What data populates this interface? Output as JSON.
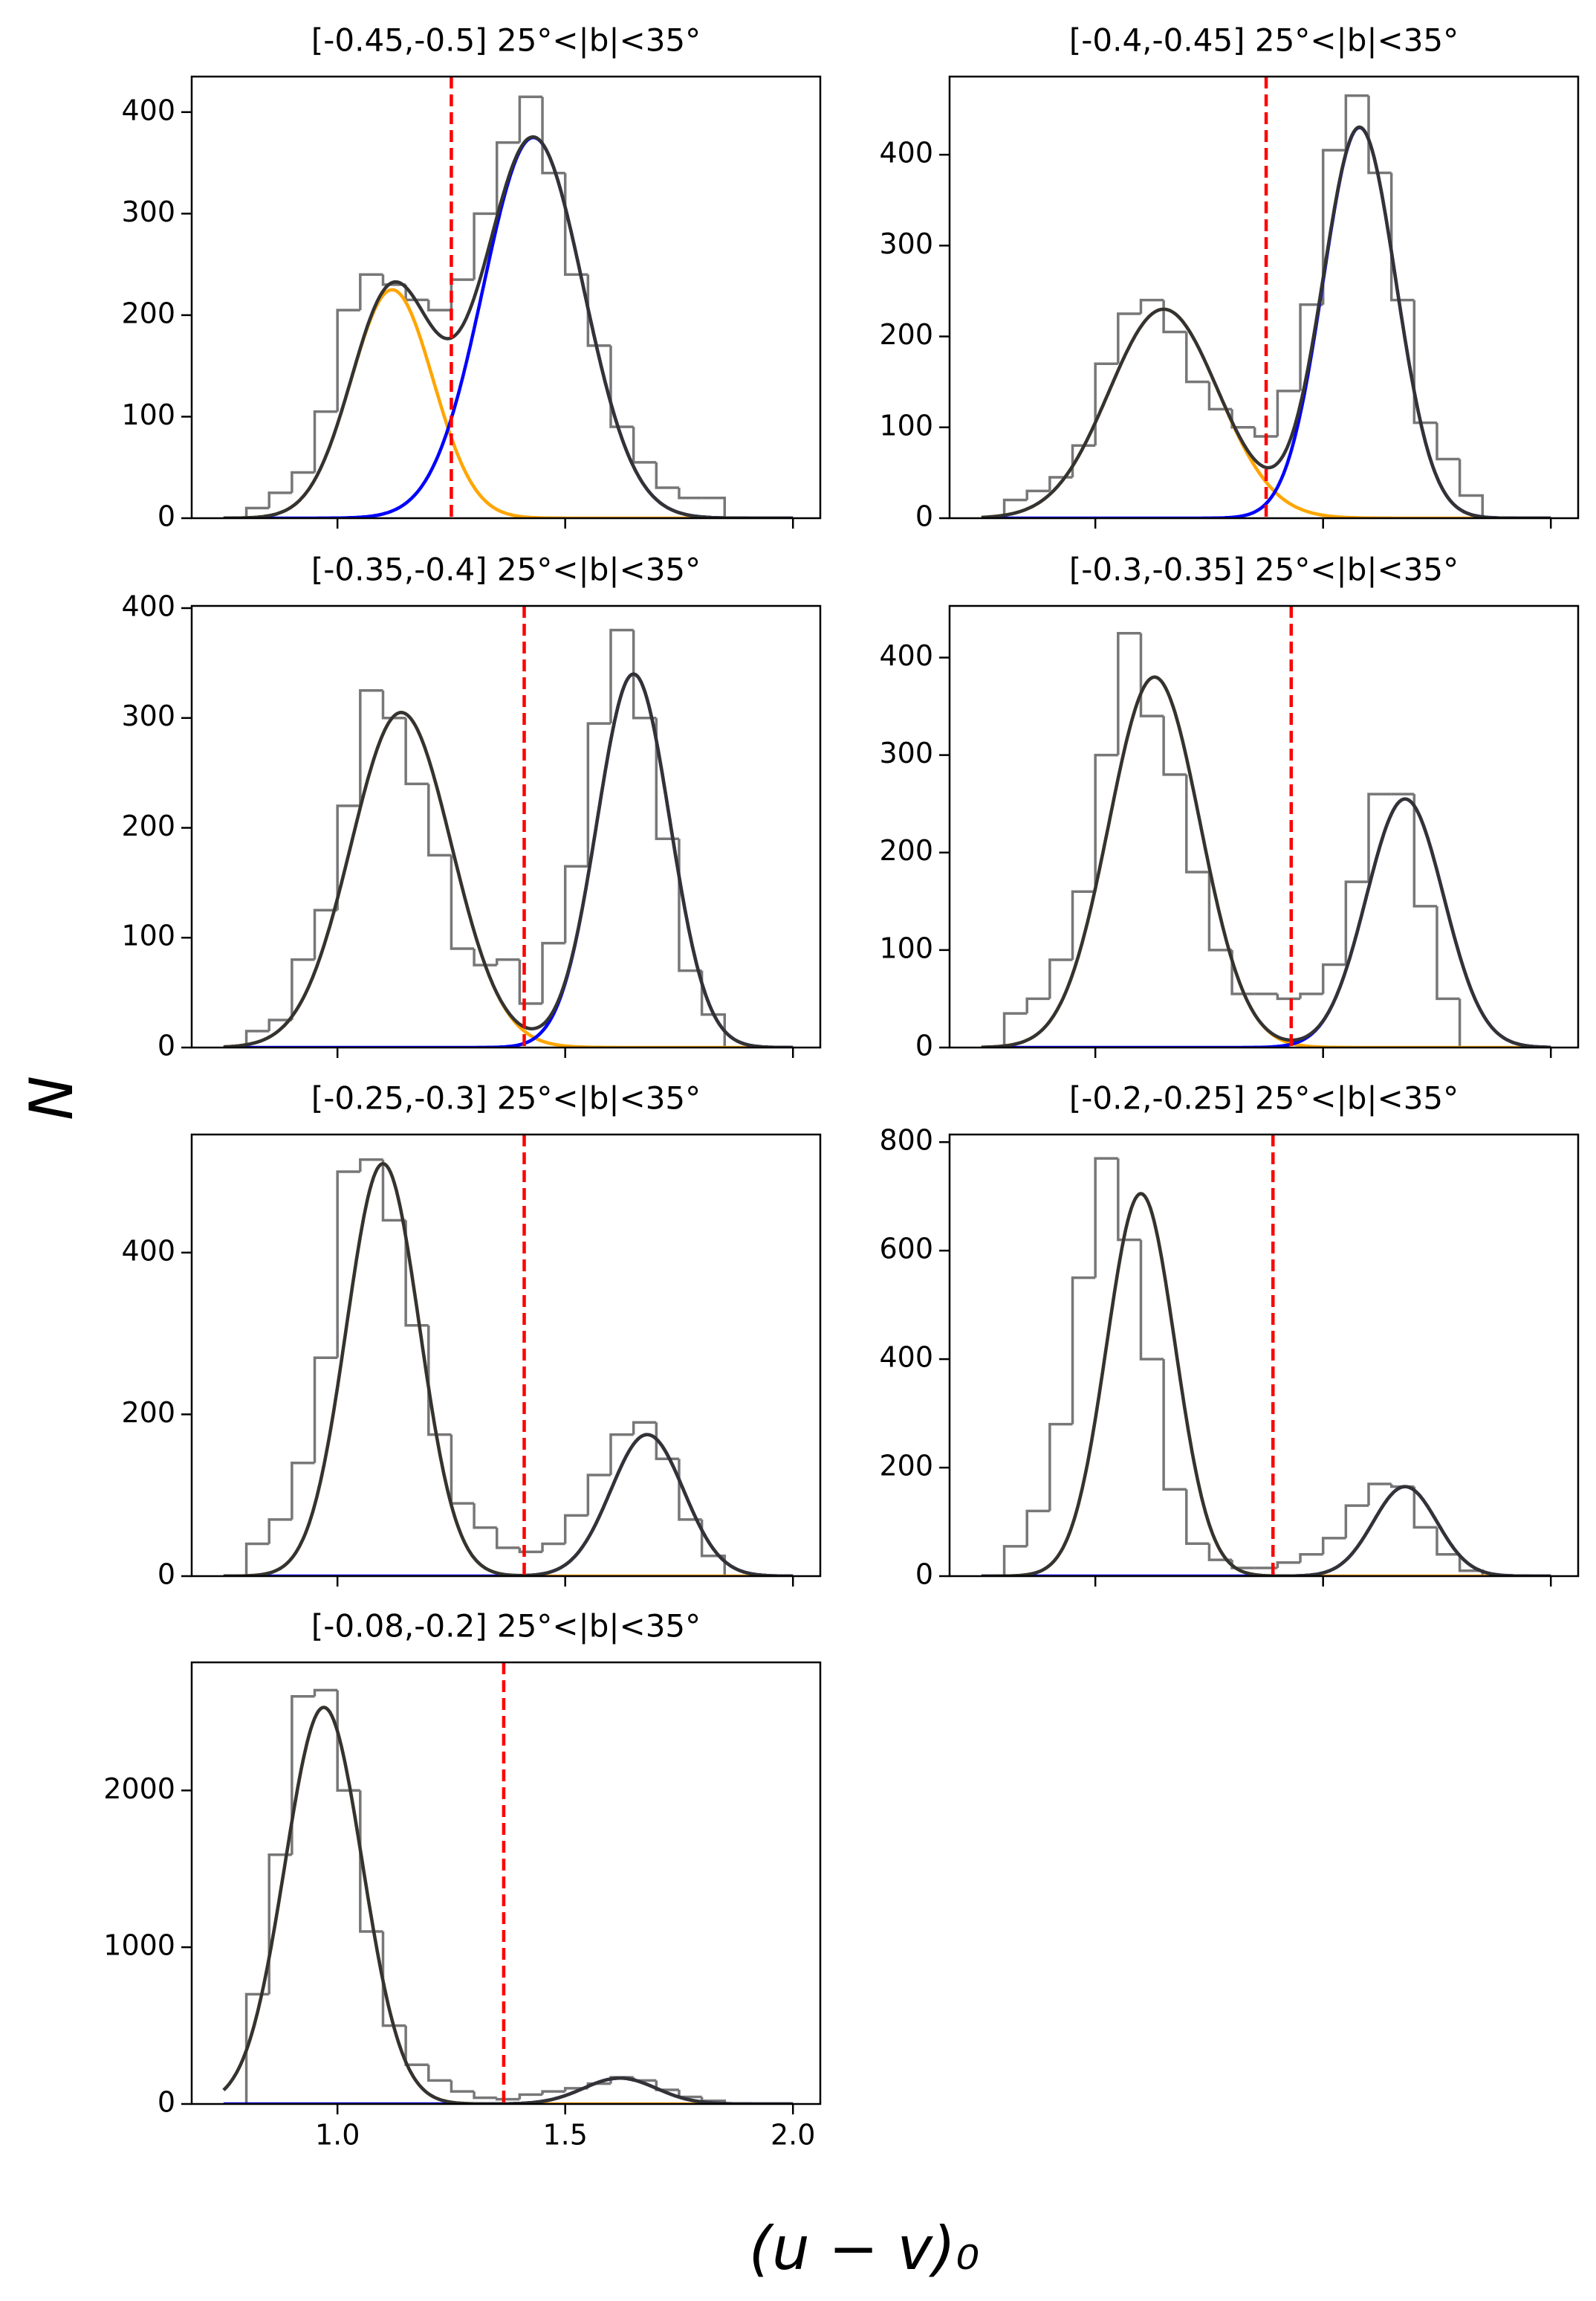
{
  "ylabel": "N",
  "xlabel": "(u − v)₀",
  "chart_data": [
    {
      "type": "histogram",
      "title": "[-0.45,-0.5] 25°<|b|<35°",
      "bins": [
        0.75,
        0.8,
        0.85,
        0.9,
        0.95,
        1.0,
        1.05,
        1.1,
        1.15,
        1.2,
        1.25,
        1.3,
        1.35,
        1.4,
        1.45,
        1.5,
        1.55,
        1.6,
        1.65,
        1.7,
        1.75,
        1.8,
        1.85
      ],
      "values": [
        0,
        10,
        25,
        45,
        105,
        205,
        240,
        230,
        215,
        205,
        235,
        300,
        370,
        415,
        340,
        240,
        170,
        90,
        55,
        30,
        20,
        20
      ],
      "color": "#777777",
      "components": [
        {
          "color": "orange",
          "amplitude": 225,
          "mean": 1.12,
          "sigma": 0.09
        },
        {
          "color": "blue",
          "amplitude": 375,
          "mean": 1.43,
          "sigma": 0.11
        }
      ],
      "total_color": "#333333",
      "threshold": 1.25,
      "threshold_color": "red",
      "xlim": [
        0.68,
        2.06
      ],
      "xticks": [
        1,
        1.5,
        2
      ],
      "ylim": [
        0,
        435
      ],
      "yticks": [
        0,
        100,
        200,
        300,
        400
      ]
    },
    {
      "type": "histogram",
      "title": "[-0.4,-0.45] 25°<|b|<35°",
      "bins": [
        0.75,
        0.8,
        0.85,
        0.9,
        0.95,
        1.0,
        1.05,
        1.1,
        1.15,
        1.2,
        1.25,
        1.3,
        1.35,
        1.4,
        1.45,
        1.5,
        1.55,
        1.6,
        1.65,
        1.7,
        1.75,
        1.8,
        1.85
      ],
      "values": [
        0,
        20,
        30,
        45,
        80,
        170,
        225,
        240,
        205,
        150,
        120,
        100,
        90,
        140,
        235,
        405,
        465,
        380,
        240,
        105,
        65,
        25
      ],
      "color": "#777777",
      "components": [
        {
          "color": "orange",
          "amplitude": 230,
          "mean": 1.15,
          "sigma": 0.12
        },
        {
          "color": "blue",
          "amplitude": 430,
          "mean": 1.58,
          "sigma": 0.08
        }
      ],
      "total_color": "#333333",
      "threshold": 1.375,
      "threshold_color": "red",
      "xlim": [
        0.68,
        2.06
      ],
      "xticks": [
        1,
        1.5,
        2
      ],
      "ylim": [
        0,
        486
      ],
      "yticks": [
        0,
        100,
        200,
        300,
        400
      ]
    },
    {
      "type": "histogram",
      "title": "[-0.35,-0.4] 25°<|b|<35°",
      "bins": [
        0.75,
        0.8,
        0.85,
        0.9,
        0.95,
        1.0,
        1.05,
        1.1,
        1.15,
        1.2,
        1.25,
        1.3,
        1.35,
        1.4,
        1.45,
        1.5,
        1.55,
        1.6,
        1.65,
        1.7,
        1.75,
        1.8,
        1.85
      ],
      "values": [
        0,
        15,
        25,
        80,
        125,
        220,
        325,
        300,
        240,
        175,
        90,
        75,
        80,
        40,
        95,
        165,
        295,
        380,
        300,
        190,
        70,
        30
      ],
      "color": "#777777",
      "components": [
        {
          "color": "orange",
          "amplitude": 305,
          "mean": 1.14,
          "sigma": 0.11
        },
        {
          "color": "blue",
          "amplitude": 340,
          "mean": 1.65,
          "sigma": 0.08
        }
      ],
      "total_color": "#333333",
      "threshold": 1.41,
      "threshold_color": "red",
      "xlim": [
        0.68,
        2.06
      ],
      "xticks": [
        1,
        1.5,
        2
      ],
      "ylim": [
        0,
        402
      ],
      "yticks": [
        0,
        100,
        200,
        300,
        400
      ]
    },
    {
      "type": "histogram",
      "title": "[-0.3,-0.35] 25°<|b|<35°",
      "bins": [
        0.75,
        0.8,
        0.85,
        0.9,
        0.95,
        1.0,
        1.05,
        1.1,
        1.15,
        1.2,
        1.25,
        1.3,
        1.35,
        1.4,
        1.45,
        1.5,
        1.55,
        1.6,
        1.65,
        1.7,
        1.75,
        1.8,
        1.85
      ],
      "values": [
        0,
        35,
        50,
        90,
        160,
        300,
        425,
        340,
        280,
        180,
        100,
        55,
        55,
        50,
        55,
        85,
        170,
        260,
        260,
        145,
        50,
        0
      ],
      "color": "#777777",
      "components": [
        {
          "color": "orange",
          "amplitude": 380,
          "mean": 1.13,
          "sigma": 0.1
        },
        {
          "color": "blue",
          "amplitude": 255,
          "mean": 1.68,
          "sigma": 0.085
        }
      ],
      "total_color": "#333333",
      "threshold": 1.43,
      "threshold_color": "red",
      "xlim": [
        0.68,
        2.06
      ],
      "xticks": [
        1,
        1.5,
        2
      ],
      "ylim": [
        0,
        453
      ],
      "yticks": [
        0,
        100,
        200,
        300,
        400
      ]
    },
    {
      "type": "histogram",
      "title": "[-0.25,-0.3] 25°<|b|<35°",
      "bins": [
        0.75,
        0.8,
        0.85,
        0.9,
        0.95,
        1.0,
        1.05,
        1.1,
        1.15,
        1.2,
        1.25,
        1.3,
        1.35,
        1.4,
        1.45,
        1.5,
        1.55,
        1.6,
        1.65,
        1.7,
        1.75,
        1.8,
        1.85
      ],
      "values": [
        0,
        40,
        70,
        140,
        270,
        500,
        515,
        440,
        310,
        175,
        90,
        60,
        35,
        30,
        40,
        75,
        125,
        175,
        190,
        145,
        70,
        25
      ],
      "color": "#777777",
      "components": [
        {
          "color": "orange",
          "amplitude": 510,
          "mean": 1.1,
          "sigma": 0.08
        },
        {
          "color": "blue",
          "amplitude": 175,
          "mean": 1.68,
          "sigma": 0.08
        }
      ],
      "total_color": "#333333",
      "threshold": 1.41,
      "threshold_color": "red",
      "xlim": [
        0.68,
        2.06
      ],
      "xticks": [
        1,
        1.5,
        2
      ],
      "ylim": [
        0,
        546
      ],
      "yticks": [
        0,
        200,
        400
      ]
    },
    {
      "type": "histogram",
      "title": "[-0.2,-0.25] 25°<|b|<35°",
      "bins": [
        0.75,
        0.8,
        0.85,
        0.9,
        0.95,
        1.0,
        1.05,
        1.1,
        1.15,
        1.2,
        1.25,
        1.3,
        1.35,
        1.4,
        1.45,
        1.5,
        1.55,
        1.6,
        1.65,
        1.7,
        1.75,
        1.8,
        1.85
      ],
      "values": [
        0,
        55,
        120,
        280,
        550,
        770,
        620,
        400,
        160,
        60,
        30,
        15,
        15,
        25,
        40,
        70,
        130,
        170,
        165,
        90,
        40,
        10
      ],
      "color": "#777777",
      "components": [
        {
          "color": "orange",
          "amplitude": 705,
          "mean": 1.1,
          "sigma": 0.075
        },
        {
          "color": "blue",
          "amplitude": 165,
          "mean": 1.68,
          "sigma": 0.07
        }
      ],
      "total_color": "#333333",
      "threshold": 1.39,
      "threshold_color": "red",
      "xlim": [
        0.68,
        2.06
      ],
      "xticks": [
        1,
        1.5,
        2
      ],
      "ylim": [
        0,
        814
      ],
      "yticks": [
        0,
        200,
        400,
        600,
        800
      ]
    },
    {
      "type": "histogram",
      "title": "[-0.08,-0.2] 25°<|b|<35°",
      "bins": [
        0.75,
        0.8,
        0.85,
        0.9,
        0.95,
        1.0,
        1.05,
        1.1,
        1.15,
        1.2,
        1.25,
        1.3,
        1.35,
        1.4,
        1.45,
        1.5,
        1.55,
        1.6,
        1.65,
        1.7,
        1.75,
        1.8,
        1.85
      ],
      "values": [
        0,
        700,
        1590,
        2600,
        2640,
        2000,
        1100,
        500,
        250,
        150,
        80,
        40,
        30,
        60,
        80,
        100,
        130,
        170,
        150,
        90,
        45,
        20
      ],
      "color": "#777777",
      "components": [
        {
          "color": "orange",
          "amplitude": 2530,
          "mean": 0.97,
          "sigma": 0.085
        },
        {
          "color": "blue",
          "amplitude": 165,
          "mean": 1.62,
          "sigma": 0.08
        }
      ],
      "total_color": "#333333",
      "threshold": 1.365,
      "threshold_color": "red",
      "xlim": [
        0.68,
        2.06
      ],
      "xticks": [
        {
          "value": 1,
          "label": "1.0"
        },
        {
          "value": 1.5,
          "label": "1.5"
        },
        {
          "value": 2,
          "label": "2.0"
        }
      ],
      "ylim": [
        0,
        2817
      ],
      "yticks": [
        0,
        1000,
        2000
      ]
    }
  ]
}
